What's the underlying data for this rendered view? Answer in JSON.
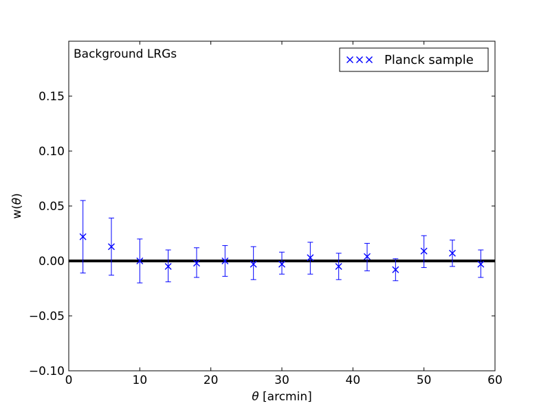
{
  "chart_data": {
    "type": "scatter",
    "annotation": "Background LRGs",
    "xlabel_symbol": "θ",
    "xlabel_text": " [arcmin]",
    "ylabel_prefix": "w(",
    "ylabel_symbol": "θ",
    "ylabel_suffix": ")",
    "xlim": [
      0,
      60
    ],
    "ylim": [
      -0.1,
      0.2
    ],
    "xticks": [
      0,
      10,
      20,
      30,
      40,
      50,
      60
    ],
    "xtick_labels": [
      "0",
      "10",
      "20",
      "30",
      "40",
      "50",
      "60"
    ],
    "yticks": [
      -0.1,
      -0.05,
      0.0,
      0.05,
      0.1,
      0.15
    ],
    "ytick_labels": [
      "−0.10",
      "−0.05",
      "0.00",
      "0.05",
      "0.10",
      "0.15"
    ],
    "grid": false,
    "legend_position": "top-right",
    "reference_line_y": 0.0,
    "reference_line_color": "#000000",
    "series": [
      {
        "name": "Planck sample",
        "marker": "x",
        "color": "#0000ff",
        "x": [
          2,
          6,
          10,
          14,
          18,
          22,
          26,
          30,
          34,
          38,
          42,
          46,
          50,
          54,
          58
        ],
        "y": [
          0.022,
          0.013,
          0.0,
          -0.005,
          -0.002,
          0.0,
          -0.003,
          -0.003,
          0.003,
          -0.005,
          0.004,
          -0.008,
          0.009,
          0.007,
          -0.003
        ],
        "yerr_low": [
          -0.011,
          -0.013,
          -0.02,
          -0.019,
          -0.015,
          -0.014,
          -0.017,
          -0.012,
          -0.012,
          -0.017,
          -0.009,
          -0.018,
          -0.006,
          -0.005,
          -0.015
        ],
        "yerr_high": [
          0.055,
          0.039,
          0.02,
          0.01,
          0.012,
          0.014,
          0.013,
          0.008,
          0.017,
          0.007,
          0.016,
          0.002,
          0.023,
          0.019,
          0.01
        ]
      }
    ]
  }
}
